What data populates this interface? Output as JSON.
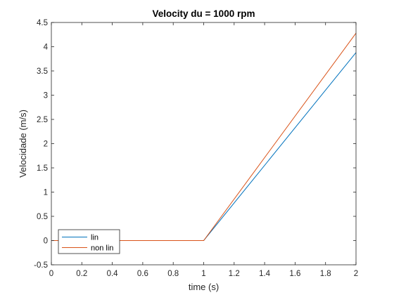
{
  "chart_data": {
    "type": "line",
    "title": "Velocity du = 1000 rpm",
    "xlabel": "time (s)",
    "ylabel": "Velocidade (m/s)",
    "xlim": [
      0,
      2
    ],
    "ylim": [
      -0.5,
      4.5
    ],
    "xticks": [
      0,
      0.2,
      0.4,
      0.6,
      0.8,
      1,
      1.2,
      1.4,
      1.6,
      1.8,
      2
    ],
    "xtick_labels": [
      "0",
      "0.2",
      "0.4",
      "0.6",
      "0.8",
      "1",
      "1.2",
      "1.4",
      "1.6",
      "1.8",
      "2"
    ],
    "yticks": [
      -0.5,
      0,
      0.5,
      1,
      1.5,
      2,
      2.5,
      3,
      3.5,
      4,
      4.5
    ],
    "ytick_labels": [
      "-0.5",
      "0",
      "0.5",
      "1",
      "1.5",
      "2",
      "2.5",
      "3",
      "3.5",
      "4",
      "4.5"
    ],
    "grid": false,
    "legend_position": "bottom-left",
    "series": [
      {
        "name": "lin",
        "color": "#0072BD",
        "x": [
          0,
          1,
          2
        ],
        "y": [
          0,
          0,
          3.88
        ]
      },
      {
        "name": "non lin",
        "color": "#D95319",
        "x": [
          0,
          1,
          2
        ],
        "y": [
          0,
          0,
          4.28
        ]
      }
    ]
  }
}
